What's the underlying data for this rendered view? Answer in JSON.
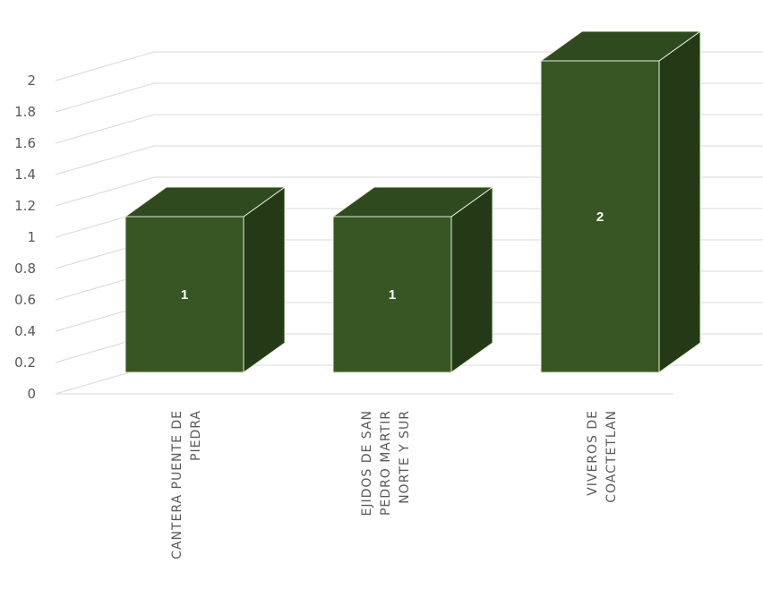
{
  "chart_data": {
    "type": "bar",
    "title": "",
    "xlabel": "",
    "ylabel": "",
    "categories": [
      [
        "CANTERA PUENTE DE",
        "PIEDRA"
      ],
      [
        "EJIDOS DE SAN",
        "PEDRO MARTIR",
        "NORTE Y SUR"
      ],
      [
        "VIVEROS DE",
        "COACTETLAN"
      ]
    ],
    "values": [
      1,
      1,
      2
    ],
    "data_labels": [
      "1",
      "1",
      "2"
    ],
    "ylim": [
      0,
      2
    ],
    "yticks": [
      "0",
      "0.2",
      "0.4",
      "0.6",
      "0.8",
      "1",
      "1.2",
      "1.4",
      "1.6",
      "1.8",
      "2"
    ],
    "grid": true,
    "legend": "none",
    "colors": {
      "front": "#375623",
      "top": "#2f4a1e",
      "side": "#243a17",
      "edge": "#e2efd9",
      "grid": "#d9d9d9"
    }
  }
}
